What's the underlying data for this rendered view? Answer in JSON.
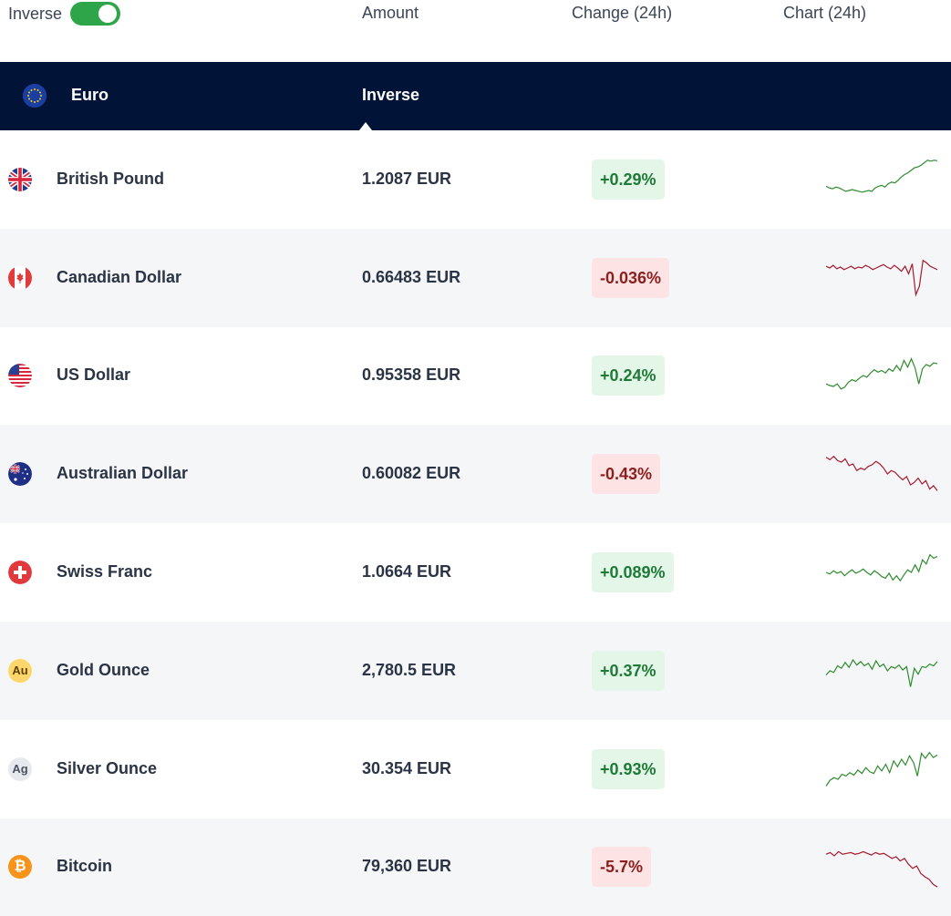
{
  "header": {
    "toggle_label": "Inverse",
    "toggle_on": true,
    "amount_label": "Amount",
    "change_label": "Change (24h)",
    "chart_label": "Chart (24h)"
  },
  "base": {
    "name": "Euro",
    "mode_label": "Inverse",
    "flag_icon": "eu-flag-icon"
  },
  "colors": {
    "up": "#1f7a38",
    "down": "#8a1f1f",
    "up_bg": "#e3f6e8",
    "down_bg": "#fde3e3",
    "header_bg": "#021338",
    "toggle_on": "#2fa54a"
  },
  "rows": [
    {
      "name": "British Pound",
      "amount": "1.2087 EUR",
      "change": "+0.29%",
      "direction": "up",
      "icon": "uk-flag-icon",
      "spark": [
        0.34,
        0.3,
        0.28,
        0.32,
        0.3,
        0.26,
        0.22,
        0.24,
        0.26,
        0.24,
        0.22,
        0.2,
        0.22,
        0.24,
        0.22,
        0.3,
        0.34,
        0.36,
        0.32,
        0.4,
        0.44,
        0.42,
        0.48,
        0.56,
        0.62,
        0.66,
        0.72,
        0.78,
        0.8,
        0.84,
        0.9,
        0.96,
        0.94,
        0.96,
        0.95
      ]
    },
    {
      "name": "Canadian Dollar",
      "amount": "0.66483 EUR",
      "change": "-0.036%",
      "direction": "down",
      "icon": "canada-flag-icon",
      "spark": [
        0.78,
        0.74,
        0.8,
        0.72,
        0.76,
        0.7,
        0.74,
        0.78,
        0.72,
        0.76,
        0.74,
        0.8,
        0.76,
        0.7,
        0.74,
        0.78,
        0.82,
        0.76,
        0.72,
        0.8,
        0.74,
        0.66,
        0.78,
        0.6,
        0.84,
        0.1,
        0.3,
        0.92,
        0.86,
        0.78,
        0.74,
        0.7
      ]
    },
    {
      "name": "US Dollar",
      "amount": "0.95358 EUR",
      "change": "+0.24%",
      "direction": "up",
      "icon": "us-flag-icon",
      "spark": [
        0.3,
        0.26,
        0.24,
        0.3,
        0.18,
        0.22,
        0.34,
        0.4,
        0.36,
        0.44,
        0.5,
        0.46,
        0.56,
        0.64,
        0.58,
        0.62,
        0.56,
        0.66,
        0.6,
        0.74,
        0.62,
        0.86,
        0.7,
        0.9,
        0.68,
        0.3,
        0.66,
        0.76,
        0.72,
        0.8,
        0.78
      ]
    },
    {
      "name": "Australian Dollar",
      "amount": "0.60082 EUR",
      "change": "-0.43%",
      "direction": "down",
      "icon": "australia-flag-icon",
      "spark": [
        0.9,
        0.84,
        0.92,
        0.82,
        0.78,
        0.86,
        0.7,
        0.74,
        0.58,
        0.64,
        0.6,
        0.68,
        0.72,
        0.8,
        0.74,
        0.64,
        0.5,
        0.58,
        0.54,
        0.44,
        0.36,
        0.44,
        0.24,
        0.3,
        0.4,
        0.26,
        0.34,
        0.14,
        0.22,
        0.1
      ]
    },
    {
      "name": "Swiss Franc",
      "amount": "1.0664 EUR",
      "change": "+0.089%",
      "direction": "up",
      "icon": "swiss-flag-icon",
      "spark": [
        0.5,
        0.46,
        0.54,
        0.48,
        0.52,
        0.42,
        0.5,
        0.56,
        0.48,
        0.52,
        0.58,
        0.5,
        0.44,
        0.54,
        0.48,
        0.4,
        0.36,
        0.48,
        0.32,
        0.42,
        0.3,
        0.44,
        0.56,
        0.5,
        0.68,
        0.52,
        0.8,
        0.7,
        0.92,
        0.84,
        0.88
      ]
    },
    {
      "name": "Gold Ounce",
      "amount": "2,780.5 EUR",
      "change": "+0.37%",
      "direction": "up",
      "icon": "gold-coin-icon",
      "coin_text": "Au",
      "spark": [
        0.4,
        0.5,
        0.46,
        0.62,
        0.56,
        0.7,
        0.58,
        0.76,
        0.64,
        0.72,
        0.62,
        0.68,
        0.54,
        0.74,
        0.6,
        0.66,
        0.5,
        0.6,
        0.56,
        0.64,
        0.52,
        0.6,
        0.12,
        0.56,
        0.42,
        0.6,
        0.58,
        0.66,
        0.62,
        0.72
      ]
    },
    {
      "name": "Silver Ounce",
      "amount": "30.354 EUR",
      "change": "+0.93%",
      "direction": "up",
      "icon": "silver-coin-icon",
      "coin_text": "Ag",
      "spark": [
        0.1,
        0.24,
        0.3,
        0.26,
        0.38,
        0.34,
        0.42,
        0.36,
        0.48,
        0.4,
        0.54,
        0.44,
        0.4,
        0.58,
        0.46,
        0.62,
        0.42,
        0.7,
        0.56,
        0.74,
        0.6,
        0.82,
        0.66,
        0.34,
        0.88,
        0.76,
        0.9,
        0.78,
        0.84
      ]
    },
    {
      "name": "Bitcoin",
      "amount": "79,360 EUR",
      "change": "-5.7%",
      "direction": "down",
      "icon": "bitcoin-icon",
      "coin_text": "₿",
      "spark": [
        0.8,
        0.84,
        0.76,
        0.86,
        0.8,
        0.82,
        0.84,
        0.8,
        0.82,
        0.86,
        0.82,
        0.78,
        0.84,
        0.8,
        0.82,
        0.76,
        0.7,
        0.74,
        0.64,
        0.7,
        0.56,
        0.46,
        0.52,
        0.34,
        0.26,
        0.2,
        0.08,
        0.02
      ]
    }
  ]
}
